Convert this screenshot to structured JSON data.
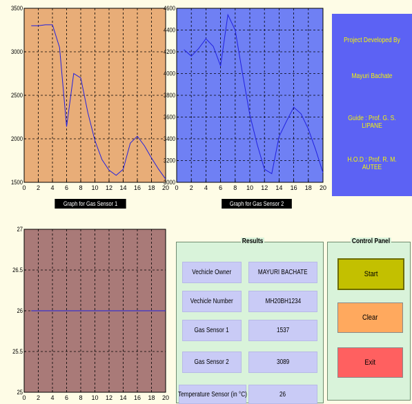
{
  "info_panel": {
    "lines": [
      "Project Developed By",
      "Mayuri Bachate",
      "Guide : Prof. G. S. LIPANE",
      "H.O.D : Prof. R. M. AUTEE"
    ]
  },
  "results": {
    "title": "Results",
    "rows": [
      {
        "label": "Vechicle Owner",
        "value": "MAYURI BACHATE"
      },
      {
        "label": "Vechicle Number",
        "value": "MH20BH1234"
      },
      {
        "label": "Gas Sensor 1",
        "value": "1537"
      },
      {
        "label": "Gas Sensor 2",
        "value": "3089"
      },
      {
        "label": "Temperature Sensor (in °C)",
        "value": "26"
      }
    ]
  },
  "control_panel": {
    "title": "Control Panel",
    "start_label": "Start",
    "clear_label": "Clear",
    "exit_label": "Exit",
    "start_color": "#c3c000",
    "clear_color": "#ffa95e",
    "exit_color": "#ff6060"
  },
  "colors": {
    "chart1_bg": "#e8ad78",
    "chart2_bg": "#6f80f4",
    "chart3_bg": "#a97a78",
    "line": "#2020e0",
    "info_bg": "#5c62f4",
    "info_text": "#f3f30a"
  },
  "chart_data": [
    {
      "type": "line",
      "caption": "Graph for Gas Sensor 1",
      "xlim": [
        0,
        20
      ],
      "ylim": [
        1500,
        3500
      ],
      "xticks": [
        0,
        2,
        4,
        6,
        8,
        10,
        12,
        14,
        16,
        18,
        20
      ],
      "yticks": [
        1500,
        2000,
        2500,
        3000,
        3500
      ],
      "grid": true,
      "series": [
        {
          "x": [
            1,
            2,
            3,
            4,
            5,
            6,
            7,
            8,
            9,
            10,
            11,
            12,
            13,
            14,
            15,
            16,
            17,
            18,
            19,
            20
          ],
          "y": [
            3300,
            3300,
            3310,
            3310,
            3050,
            2140,
            2750,
            2700,
            2300,
            1980,
            1760,
            1640,
            1580,
            1650,
            1950,
            2030,
            1920,
            1780,
            1650,
            1537
          ]
        }
      ]
    },
    {
      "type": "line",
      "caption": "Graph for Gas Sensor 2",
      "xlim": [
        0,
        20
      ],
      "ylim": [
        3000,
        4600
      ],
      "xticks": [
        0,
        2,
        4,
        6,
        8,
        10,
        12,
        14,
        16,
        18,
        20
      ],
      "yticks": [
        3000,
        3200,
        3400,
        3600,
        3800,
        4000,
        4200,
        4400,
        4600
      ],
      "grid": true,
      "series": [
        {
          "x": [
            1,
            2,
            3,
            4,
            5,
            6,
            7,
            8,
            9,
            10,
            11,
            12,
            13,
            14,
            15,
            16,
            17,
            18,
            19,
            20
          ],
          "y": [
            4220,
            4160,
            4230,
            4320,
            4250,
            4070,
            4540,
            4400,
            4000,
            3620,
            3350,
            3120,
            3080,
            3420,
            3560,
            3690,
            3630,
            3490,
            3300,
            3089
          ]
        }
      ]
    },
    {
      "type": "line",
      "caption": "",
      "xlim": [
        0,
        20
      ],
      "ylim": [
        25,
        27
      ],
      "xticks": [
        0,
        2,
        4,
        6,
        8,
        10,
        12,
        14,
        16,
        18,
        20
      ],
      "yticks": [
        25,
        25.5,
        26,
        26.5,
        27
      ],
      "grid": true,
      "series": [
        {
          "x": [
            1,
            2,
            3,
            4,
            5,
            6,
            7,
            8,
            9,
            10,
            11,
            12,
            13,
            14,
            15,
            16,
            17,
            18,
            19,
            20
          ],
          "y": [
            26,
            26,
            26,
            26,
            26,
            26,
            26,
            26,
            26,
            26,
            26,
            26,
            26,
            26,
            26,
            26,
            26,
            26,
            26,
            26
          ]
        }
      ]
    }
  ]
}
